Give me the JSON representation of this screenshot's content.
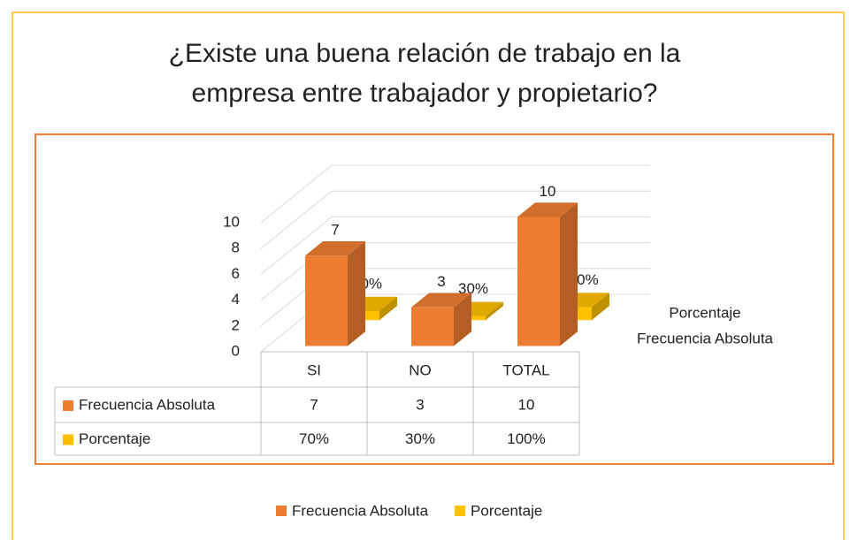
{
  "chart_data": {
    "type": "bar3d",
    "title": "¿Existe una buena relación de trabajo en la empresa entre trabajador y propietario?",
    "categories": [
      "SI",
      "NO",
      "TOTAL"
    ],
    "series": [
      {
        "name": "Frecuencia Absoluta",
        "color": "#ED7D31",
        "values": [
          7,
          3,
          10
        ]
      },
      {
        "name": "Porcentaje",
        "color": "#FFC000",
        "values": [
          0.7,
          0.3,
          1
        ],
        "value_labels": [
          "70%",
          "30%",
          "100%"
        ]
      }
    ],
    "ylim": [
      0,
      10
    ],
    "yticks": [
      0,
      2,
      4,
      6,
      8,
      10
    ],
    "grid": true,
    "legend": "bottom",
    "data_table": true
  }
}
